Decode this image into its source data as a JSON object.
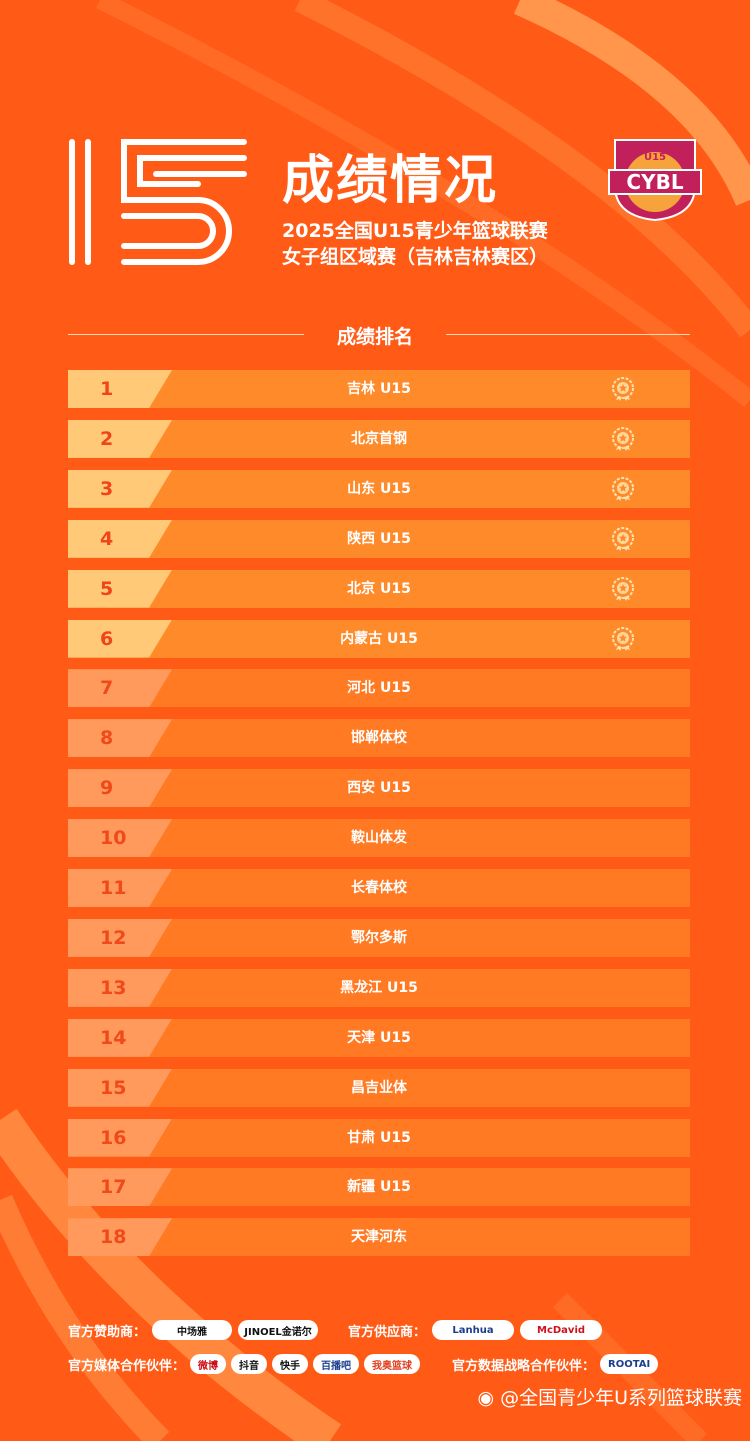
{
  "header": {
    "title": "成绩情况",
    "subtitle_line1": "2025全国U15青少年篮球联赛",
    "subtitle_line2": "女子组区域赛（吉林吉林赛区）",
    "logo_text": "CYBL",
    "logo_top": "U15"
  },
  "section_title": "成绩排名",
  "rankings": [
    {
      "rank": "1",
      "team": "吉林 U15",
      "medal": true
    },
    {
      "rank": "2",
      "team": "北京首钢",
      "medal": true
    },
    {
      "rank": "3",
      "team": "山东 U15",
      "medal": true
    },
    {
      "rank": "4",
      "team": "陕西 U15",
      "medal": true
    },
    {
      "rank": "5",
      "team": "北京 U15",
      "medal": true
    },
    {
      "rank": "6",
      "team": "内蒙古 U15",
      "medal": true
    },
    {
      "rank": "7",
      "team": "河北 U15",
      "medal": false
    },
    {
      "rank": "8",
      "team": "邯郸体校",
      "medal": false
    },
    {
      "rank": "9",
      "team": "西安 U15",
      "medal": false
    },
    {
      "rank": "10",
      "team": "鞍山体发",
      "medal": false
    },
    {
      "rank": "11",
      "team": "长春体校",
      "medal": false
    },
    {
      "rank": "12",
      "team": "鄂尔多斯",
      "medal": false
    },
    {
      "rank": "13",
      "team": "黑龙江 U15",
      "medal": false
    },
    {
      "rank": "14",
      "team": "天津 U15",
      "medal": false
    },
    {
      "rank": "15",
      "team": "昌吉业体",
      "medal": false
    },
    {
      "rank": "16",
      "team": "甘肃 U15",
      "medal": false
    },
    {
      "rank": "17",
      "team": "新疆 U15",
      "medal": false
    },
    {
      "rank": "18",
      "team": "天津河东",
      "medal": false
    }
  ],
  "sponsors": {
    "sponsor_label": "官方赞助商：",
    "sponsors": [
      "中场雅",
      "JINOEL金诺尔"
    ],
    "supplier_label": "官方供应商：",
    "suppliers": [
      "Lanhua",
      "McDavid"
    ],
    "media_label": "官方媒体合作伙伴：",
    "media": [
      "微博",
      "抖音",
      "快手",
      "百播吧",
      "我奥篮球"
    ],
    "data_label": "官方数据战略合作伙伴：",
    "data": [
      "ROOTAI"
    ]
  },
  "watermark": "@全国青少年U系列篮球联赛",
  "colors": {
    "background": "#ff5a16",
    "row_top": "#ff8a2a",
    "row_other": "#ff7a22",
    "rank_top_bg": "#ffc978",
    "rank_num": "#f0441a"
  }
}
